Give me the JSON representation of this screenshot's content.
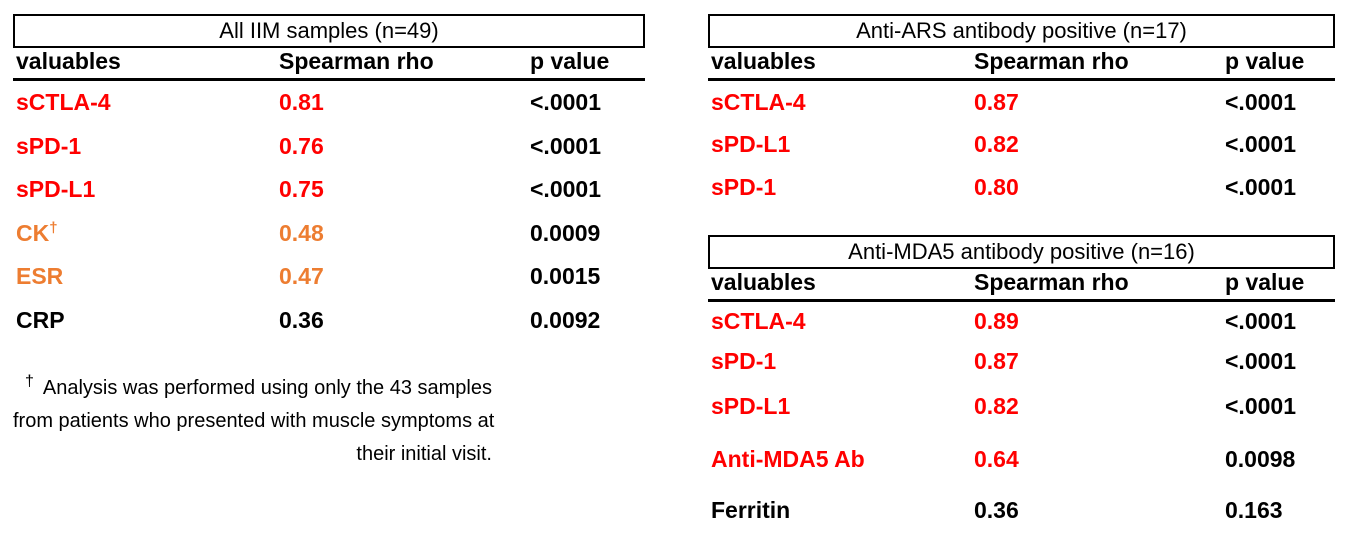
{
  "colors": {
    "strong_correlation_red": "#ff0000",
    "moderate_correlation_orange": "#ed7d31",
    "weak_correlation_black": "#000000",
    "border_black": "#000000"
  },
  "tables": {
    "all_iim": {
      "title": "All IIM samples (n=49)",
      "columns": {
        "variable": "valuables",
        "rho": "Spearman rho",
        "p": "p value"
      },
      "rows": [
        {
          "label": "sCTLA-4",
          "sup": "",
          "rho": "0.81",
          "p": "<.0001",
          "color": "#ff0000"
        },
        {
          "label": "sPD-1",
          "sup": "",
          "rho": "0.76",
          "p": "<.0001",
          "color": "#ff0000"
        },
        {
          "label": "sPD-L1",
          "sup": "",
          "rho": "0.75",
          "p": "<.0001",
          "color": "#ff0000"
        },
        {
          "label": "CK",
          "sup": "†",
          "rho": "0.48",
          "p": "0.0009",
          "color": "#ed7d31"
        },
        {
          "label": "ESR",
          "sup": "",
          "rho": "0.47",
          "p": "0.0015",
          "color": "#ed7d31"
        },
        {
          "label": "CRP",
          "sup": "",
          "rho": "0.36",
          "p": "0.0092",
          "color": "#000000"
        }
      ]
    },
    "anti_ars": {
      "title": "Anti-ARS antibody positive (n=17)",
      "columns": {
        "variable": "valuables",
        "rho": "Spearman rho",
        "p": "p value"
      },
      "rows": [
        {
          "label": "sCTLA-4",
          "sup": "",
          "rho": "0.87",
          "p": "<.0001",
          "color": "#ff0000"
        },
        {
          "label": "sPD-L1",
          "sup": "",
          "rho": "0.82",
          "p": "<.0001",
          "color": "#ff0000"
        },
        {
          "label": "sPD-1",
          "sup": "",
          "rho": "0.80",
          "p": "<.0001",
          "color": "#ff0000"
        }
      ]
    },
    "anti_mda5": {
      "title": "Anti-MDA5 antibody positive (n=16)",
      "columns": {
        "variable": "valuables",
        "rho": "Spearman rho",
        "p": "p value"
      },
      "rows": [
        {
          "label": "sCTLA-4",
          "sup": "",
          "rho": "0.89",
          "p": "<.0001",
          "color": "#ff0000"
        },
        {
          "label": "sPD-1",
          "sup": "",
          "rho": "0.87",
          "p": "<.0001",
          "color": "#ff0000"
        },
        {
          "label": "sPD-L1",
          "sup": "",
          "rho": "0.82",
          "p": "<.0001",
          "color": "#ff0000"
        },
        {
          "label": "Anti-MDA5 Ab",
          "sup": "",
          "rho": "0.64",
          "p": "0.0098",
          "color": "#ff0000"
        },
        {
          "label": "Ferritin",
          "sup": "",
          "rho": "0.36",
          "p": "0.163",
          "color": "#000000"
        }
      ]
    }
  },
  "footnote": {
    "marker": "†",
    "lines": [
      "Analysis was performed using only the 43 samples",
      "from patients who presented with muscle symptoms at",
      "their initial visit."
    ]
  }
}
